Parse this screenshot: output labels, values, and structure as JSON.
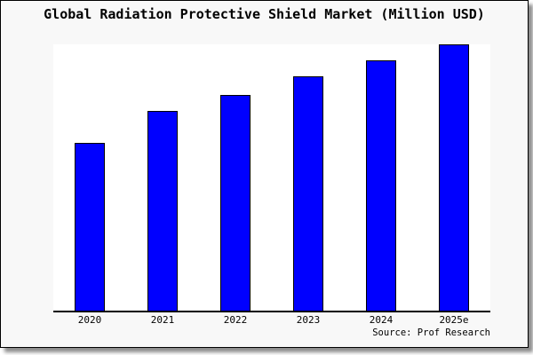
{
  "window": {
    "background_color": "#f8f8f8",
    "plot_background_color": "#ffffff",
    "frame_border_color": "#000000"
  },
  "chart_data": {
    "type": "bar",
    "title": "Global Radiation Protective Shield Market (Million USD)",
    "categories": [
      "2020",
      "2021",
      "2022",
      "2023",
      "2024",
      "2025e"
    ],
    "values": [
      63,
      75,
      81,
      88,
      94,
      100
    ],
    "values_note": "relative bar heights in % of tallest bar (no y-axis scale shown in image)",
    "xlabel": "",
    "ylabel": "",
    "ylim": [
      0,
      100
    ],
    "grid": false,
    "legend": null,
    "bar_color": "#0000ff",
    "bar_border_color": "#000000",
    "axis_color": "#000000",
    "source_note": "Source: Prof Research"
  }
}
